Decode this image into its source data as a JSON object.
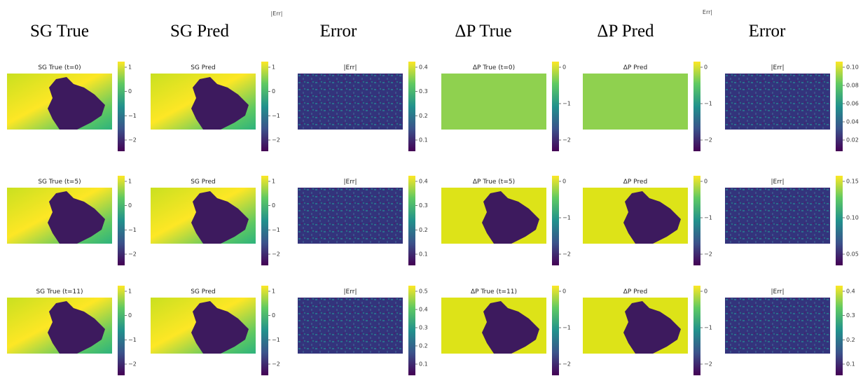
{
  "column_headers": [
    "SG True",
    "SG Pred",
    "Error",
    "ΔP True",
    "ΔP Pred",
    "Error"
  ],
  "stray_labels": [
    "|Err|",
    "Err|"
  ],
  "rows": [
    {
      "panels": [
        {
          "title": "SG True (t=0)",
          "ticks": [
            "1",
            "0",
            "−1",
            "−2"
          ]
        },
        {
          "title": "SG Pred",
          "ticks": [
            "1",
            "0",
            "−1",
            "−2"
          ]
        },
        {
          "title": "|Err|",
          "ticks": [
            "0.4",
            "0.3",
            "0.2",
            "0.1"
          ]
        },
        {
          "title": "ΔP True (t=0)",
          "ticks": [
            "0",
            "−1",
            "−2"
          ]
        },
        {
          "title": "ΔP Pred",
          "ticks": [
            "0",
            "−1",
            "−2"
          ]
        },
        {
          "title": "|Err|",
          "ticks": [
            "0.10",
            "0.08",
            "0.06",
            "0.04",
            "0.02"
          ]
        }
      ]
    },
    {
      "panels": [
        {
          "title": "SG True (t=5)",
          "ticks": [
            "1",
            "0",
            "−1",
            "−2"
          ]
        },
        {
          "title": "SG Pred",
          "ticks": [
            "1",
            "0",
            "−1",
            "−2"
          ]
        },
        {
          "title": "|Err|",
          "ticks": [
            "0.4",
            "0.3",
            "0.2",
            "0.1"
          ]
        },
        {
          "title": "ΔP True (t=5)",
          "ticks": [
            "0",
            "−1",
            "−2"
          ]
        },
        {
          "title": "ΔP Pred",
          "ticks": [
            "0",
            "−1",
            "−2"
          ]
        },
        {
          "title": "|Err|",
          "ticks": [
            "0.15",
            "0.10",
            "0.05"
          ]
        }
      ]
    },
    {
      "panels": [
        {
          "title": "SG True (t=11)",
          "ticks": [
            "1",
            "0",
            "−1",
            "−2"
          ]
        },
        {
          "title": "SG Pred",
          "ticks": [
            "1",
            "0",
            "−1",
            "−2"
          ]
        },
        {
          "title": "|Err|",
          "ticks": [
            "0.5",
            "0.4",
            "0.3",
            "0.2",
            "0.1"
          ]
        },
        {
          "title": "ΔP True (t=11)",
          "ticks": [
            "0",
            "−1",
            "−2"
          ]
        },
        {
          "title": "ΔP Pred",
          "ticks": [
            "0",
            "−1",
            "−2"
          ]
        },
        {
          "title": "|Err|",
          "ticks": [
            "0.4",
            "0.3",
            "0.2",
            "0.1"
          ]
        }
      ]
    }
  ]
}
